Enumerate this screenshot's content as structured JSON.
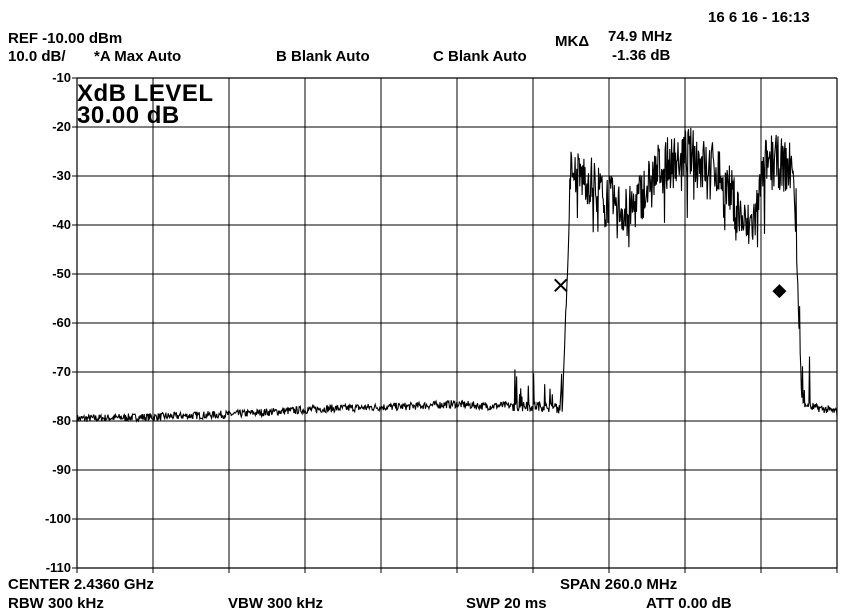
{
  "header": {
    "datetime": "16 6 16 - 16:13",
    "ref_level": "REF  -10.00 dBm",
    "scale": "10.0 dB/",
    "trace_a": "*A Max Auto",
    "trace_b": "B Blank Auto",
    "trace_c": "C Blank Auto",
    "marker_label": "MKΔ",
    "marker_freq": "74.9 MHz",
    "marker_level": "-1.36 dB"
  },
  "annotation": {
    "line1": "XdB LEVEL",
    "line2": "30.00 dB"
  },
  "footer": {
    "center": "CENTER 2.4360 GHz",
    "span": "SPAN 260.0 MHz",
    "rbw": "RBW  300 kHz",
    "vbw": "VBW  300 kHz",
    "sweep": "SWP  20 ms",
    "attenuation": "ATT  0.00 dB"
  },
  "chart_data": {
    "type": "line",
    "title": "",
    "xlabel": "",
    "ylabel": "",
    "x_unit": "GHz",
    "y_unit": "dBm",
    "xlim": [
      2.306,
      2.566
    ],
    "ylim": [
      -110,
      -10
    ],
    "y_ticks": [
      "-10",
      "-20",
      "-30",
      "-40",
      "-50",
      "-60",
      "-70",
      "-80",
      "-90",
      "-100",
      "-110"
    ],
    "x_divisions": 10,
    "y_divisions": 10,
    "grid": true,
    "series": [
      {
        "trace": "A",
        "x": [
          2.306,
          2.33,
          2.36,
          2.39,
          2.42,
          2.435,
          2.446,
          2.452,
          2.458,
          2.464,
          2.472,
          2.475,
          2.481,
          2.484,
          2.49,
          2.495,
          2.5,
          2.505,
          2.51,
          2.515,
          2.52,
          2.525,
          2.53,
          2.535,
          2.538,
          2.542,
          2.545,
          2.548,
          2.551,
          2.554,
          2.558,
          2.561,
          2.565,
          2.566
        ],
        "y": [
          -79.5,
          -79.2,
          -78.6,
          -77.5,
          -77.0,
          -76.5,
          -77.0,
          -76.8,
          -77.1,
          -76.9,
          -77.6,
          -30.0,
          -30.5,
          -32.5,
          -36.0,
          -37.5,
          -33.0,
          -28.5,
          -27.0,
          -25.0,
          -27.5,
          -28.5,
          -34.0,
          -41.0,
          -38.5,
          -26.5,
          -27.0,
          -28.0,
          -28.5,
          -76.0,
          -77.2,
          -77.5,
          -78.0,
          -78.2
        ],
        "segments": [
          {
            "x": [
              2.306,
              2.3245
            ],
            "y": [
              -79.5,
              -79.3
            ]
          },
          {
            "x": [
              2.3245,
              2.3432
            ],
            "y": [
              -79.3,
              -79.0
            ]
          },
          {
            "x": [
              2.3432,
              2.3618
            ],
            "y": [
              -79.0,
              -78.6
            ]
          },
          {
            "x": [
              2.3618,
              2.3806
            ],
            "y": [
              -78.6,
              -78.0
            ]
          },
          {
            "x": [
              2.3806,
              2.399
            ],
            "y": [
              -78.0,
              -77.5
            ]
          },
          {
            "x": [
              2.399,
              2.4177
            ],
            "y": [
              -77.5,
              -77.0
            ]
          },
          {
            "x": [
              2.4177,
              2.436
            ],
            "y": [
              -77.0,
              -76.5
            ]
          },
          {
            "x": [
              2.436,
              2.4545
            ],
            "y": [
              -76.5,
              -77.0
            ]
          },
          {
            "x": [
              2.4545,
              2.4733
            ],
            "y": [
              -77.0,
              -77.6
            ]
          },
          {
            "x": [
              2.4733,
              2.476
            ],
            "y": [
              -77.6,
              -30.0
            ]
          },
          {
            "x": [
              2.476,
              2.492
            ],
            "y": [
              -30.0,
              -36.0
            ]
          },
          {
            "x": [
              2.492,
              2.51
            ],
            "y": [
              -36.0,
              -27.0
            ]
          },
          {
            "x": [
              2.51,
              2.53
            ],
            "y": [
              -27.0,
              -34.0
            ]
          },
          {
            "x": [
              2.53,
              2.542
            ],
            "y": [
              -34.0,
              -26.5
            ]
          },
          {
            "x": [
              2.542,
              2.551
            ],
            "y": [
              -26.5,
              -28.5
            ]
          },
          {
            "x": [
              2.551,
              2.5535
            ],
            "y": [
              -28.5,
              -76.0
            ]
          },
          {
            "x": [
              2.5535,
              2.566
            ],
            "y": [
              -76.0,
              -78.2
            ]
          }
        ]
      }
    ],
    "markers": [
      {
        "symbol": "×",
        "x": 2.4715,
        "y": -52.3
      },
      {
        "symbol": "◆",
        "x": 2.5463,
        "y": -53.5
      }
    ]
  }
}
